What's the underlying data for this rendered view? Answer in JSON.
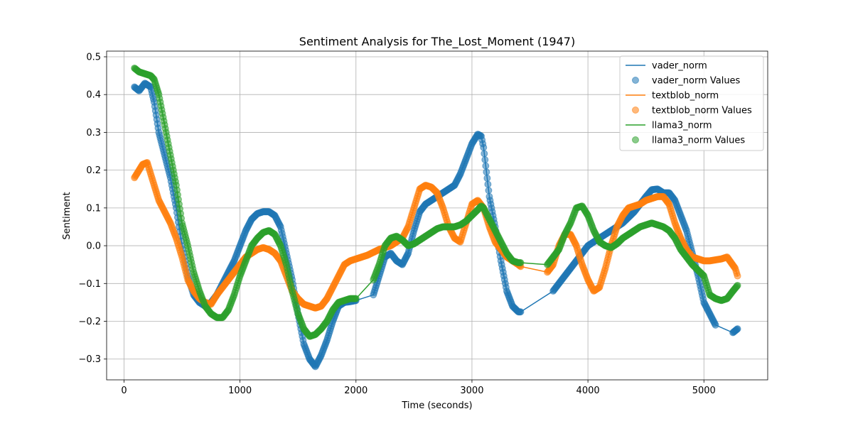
{
  "chart_data": {
    "type": "line",
    "title": "Sentiment Analysis for The_Lost_Moment (1947)",
    "xlabel": "Time (seconds)",
    "ylabel": "Sentiment",
    "xlim": [
      -150,
      5550
    ],
    "ylim": [
      -0.355,
      0.515
    ],
    "xticks": [
      0,
      1000,
      2000,
      3000,
      4000,
      5000
    ],
    "yticks": [
      -0.3,
      -0.2,
      -0.1,
      0.0,
      0.1,
      0.2,
      0.3,
      0.4,
      0.5
    ],
    "grid": true,
    "legend_position": "top-right",
    "legend": [
      {
        "label": "vader_norm",
        "kind": "line",
        "series": 0
      },
      {
        "label": "vader_norm Values",
        "kind": "marker",
        "series": 0
      },
      {
        "label": "textblob_norm",
        "kind": "line",
        "series": 1
      },
      {
        "label": "textblob_norm Values",
        "kind": "marker",
        "series": 1
      },
      {
        "label": "llama3_norm",
        "kind": "line",
        "series": 2
      },
      {
        "label": "llama3_norm Values",
        "kind": "marker",
        "series": 2
      }
    ],
    "series": [
      {
        "name": "vader_norm",
        "color": "#1f77b4",
        "x": [
          90,
          130,
          180,
          230,
          260,
          300,
          350,
          400,
          450,
          500,
          550,
          600,
          650,
          700,
          750,
          800,
          850,
          900,
          950,
          1000,
          1050,
          1100,
          1150,
          1200,
          1250,
          1300,
          1350,
          1400,
          1450,
          1500,
          1550,
          1600,
          1650,
          1700,
          1750,
          1800,
          1850,
          1900,
          1950,
          2000,
          2150,
          2200,
          2250,
          2300,
          2350,
          2400,
          2450,
          2500,
          2550,
          2600,
          2650,
          2700,
          2750,
          2800,
          2850,
          2900,
          2950,
          3000,
          3050,
          3080,
          3100,
          3150,
          3200,
          3250,
          3300,
          3350,
          3400,
          3420,
          3700,
          3750,
          3800,
          3850,
          3900,
          3950,
          4000,
          4050,
          4100,
          4150,
          4200,
          4250,
          4300,
          4350,
          4400,
          4450,
          4500,
          4550,
          4600,
          4650,
          4700,
          4750,
          4800,
          4850,
          4900,
          4950,
          5000,
          5050,
          5100,
          5250,
          5290
        ],
        "y": [
          0.42,
          0.41,
          0.43,
          0.42,
          0.38,
          0.3,
          0.24,
          0.18,
          0.1,
          0.0,
          -0.08,
          -0.13,
          -0.15,
          -0.16,
          -0.15,
          -0.13,
          -0.1,
          -0.07,
          -0.04,
          0.0,
          0.04,
          0.07,
          0.085,
          0.09,
          0.09,
          0.08,
          0.05,
          -0.02,
          -0.09,
          -0.18,
          -0.26,
          -0.3,
          -0.32,
          -0.29,
          -0.25,
          -0.2,
          -0.16,
          -0.15,
          -0.148,
          -0.145,
          -0.13,
          -0.08,
          -0.03,
          -0.02,
          -0.04,
          -0.05,
          -0.02,
          0.04,
          0.09,
          0.11,
          0.12,
          0.13,
          0.14,
          0.15,
          0.16,
          0.19,
          0.23,
          0.27,
          0.295,
          0.29,
          0.26,
          0.13,
          0.05,
          -0.04,
          -0.12,
          -0.16,
          -0.175,
          -0.175,
          -0.12,
          -0.1,
          -0.08,
          -0.06,
          -0.04,
          -0.02,
          0.0,
          0.01,
          0.02,
          0.03,
          0.04,
          0.05,
          0.06,
          0.075,
          0.09,
          0.11,
          0.13,
          0.148,
          0.15,
          0.14,
          0.14,
          0.12,
          0.08,
          0.04,
          -0.02,
          -0.08,
          -0.15,
          -0.18,
          -0.21,
          -0.23,
          -0.22
        ]
      },
      {
        "name": "textblob_norm",
        "color": "#ff7f0e",
        "x": [
          90,
          130,
          160,
          200,
          230,
          260,
          300,
          350,
          400,
          450,
          500,
          550,
          600,
          650,
          700,
          750,
          800,
          850,
          900,
          950,
          1000,
          1050,
          1100,
          1150,
          1200,
          1250,
          1300,
          1350,
          1400,
          1450,
          1500,
          1550,
          1600,
          1650,
          1700,
          1750,
          1800,
          1850,
          1900,
          1950,
          2000,
          2100,
          2200,
          2300,
          2400,
          2450,
          2500,
          2550,
          2600,
          2650,
          2700,
          2750,
          2800,
          2850,
          2900,
          2950,
          3000,
          3050,
          3100,
          3150,
          3200,
          3250,
          3300,
          3350,
          3400,
          3420,
          3650,
          3700,
          3750,
          3800,
          3850,
          3900,
          3950,
          4000,
          4050,
          4100,
          4150,
          4200,
          4250,
          4300,
          4350,
          4400,
          4450,
          4500,
          4550,
          4600,
          4650,
          4700,
          4750,
          4800,
          4850,
          4900,
          5000,
          5050,
          5150,
          5200,
          5270,
          5290
        ],
        "y": [
          0.18,
          0.2,
          0.215,
          0.22,
          0.19,
          0.16,
          0.12,
          0.09,
          0.06,
          0.02,
          -0.03,
          -0.09,
          -0.12,
          -0.14,
          -0.15,
          -0.155,
          -0.13,
          -0.11,
          -0.09,
          -0.07,
          -0.05,
          -0.03,
          -0.02,
          -0.01,
          -0.005,
          -0.01,
          -0.02,
          -0.04,
          -0.08,
          -0.12,
          -0.14,
          -0.155,
          -0.16,
          -0.165,
          -0.16,
          -0.14,
          -0.11,
          -0.08,
          -0.05,
          -0.04,
          -0.035,
          -0.025,
          -0.01,
          0.0,
          0.02,
          0.05,
          0.1,
          0.15,
          0.16,
          0.155,
          0.14,
          0.1,
          0.05,
          0.02,
          0.01,
          0.06,
          0.11,
          0.12,
          0.1,
          0.05,
          0.01,
          -0.01,
          -0.03,
          -0.04,
          -0.05,
          -0.055,
          -0.07,
          -0.05,
          0.0,
          0.03,
          0.03,
          0.0,
          -0.05,
          -0.09,
          -0.12,
          -0.11,
          -0.06,
          0.0,
          0.05,
          0.08,
          0.1,
          0.105,
          0.11,
          0.12,
          0.125,
          0.13,
          0.13,
          0.11,
          0.06,
          0.02,
          -0.01,
          -0.03,
          -0.04,
          -0.04,
          -0.035,
          -0.03,
          -0.06,
          -0.08
        ]
      },
      {
        "name": "llama3_norm",
        "color": "#2ca02c",
        "x": [
          90,
          130,
          180,
          230,
          260,
          300,
          350,
          400,
          450,
          500,
          550,
          600,
          650,
          700,
          750,
          800,
          850,
          900,
          950,
          1000,
          1050,
          1100,
          1150,
          1200,
          1250,
          1300,
          1350,
          1400,
          1450,
          1500,
          1550,
          1600,
          1650,
          1700,
          1750,
          1800,
          1850,
          1900,
          1950,
          2000,
          2150,
          2200,
          2250,
          2300,
          2350,
          2400,
          2450,
          2500,
          2550,
          2600,
          2650,
          2700,
          2750,
          2800,
          2850,
          2900,
          2950,
          3000,
          3050,
          3080,
          3100,
          3150,
          3200,
          3250,
          3300,
          3350,
          3400,
          3420,
          3650,
          3700,
          3750,
          3800,
          3850,
          3900,
          3950,
          4000,
          4050,
          4100,
          4150,
          4200,
          4250,
          4300,
          4350,
          4400,
          4450,
          4500,
          4550,
          4600,
          4650,
          4700,
          4750,
          4800,
          4850,
          4900,
          5000,
          5050,
          5100,
          5150,
          5200,
          5250,
          5290
        ],
        "y": [
          0.47,
          0.46,
          0.455,
          0.45,
          0.44,
          0.4,
          0.32,
          0.24,
          0.16,
          0.06,
          0.0,
          -0.07,
          -0.12,
          -0.16,
          -0.18,
          -0.19,
          -0.19,
          -0.17,
          -0.13,
          -0.08,
          -0.04,
          0.0,
          0.02,
          0.035,
          0.04,
          0.03,
          0.0,
          -0.05,
          -0.12,
          -0.18,
          -0.22,
          -0.24,
          -0.235,
          -0.22,
          -0.2,
          -0.17,
          -0.15,
          -0.145,
          -0.14,
          -0.14,
          -0.09,
          -0.05,
          0.0,
          0.02,
          0.025,
          0.015,
          0.0,
          0.005,
          0.015,
          0.025,
          0.035,
          0.045,
          0.05,
          0.05,
          0.05,
          0.055,
          0.065,
          0.08,
          0.095,
          0.105,
          0.1,
          0.07,
          0.04,
          0.01,
          -0.02,
          -0.04,
          -0.045,
          -0.045,
          -0.05,
          -0.03,
          -0.01,
          0.03,
          0.06,
          0.1,
          0.105,
          0.08,
          0.04,
          0.01,
          0.0,
          -0.005,
          0.005,
          0.02,
          0.03,
          0.04,
          0.05,
          0.055,
          0.06,
          0.055,
          0.05,
          0.04,
          0.02,
          -0.01,
          -0.03,
          -0.05,
          -0.08,
          -0.13,
          -0.14,
          -0.145,
          -0.14,
          -0.12,
          -0.105
        ]
      }
    ]
  }
}
